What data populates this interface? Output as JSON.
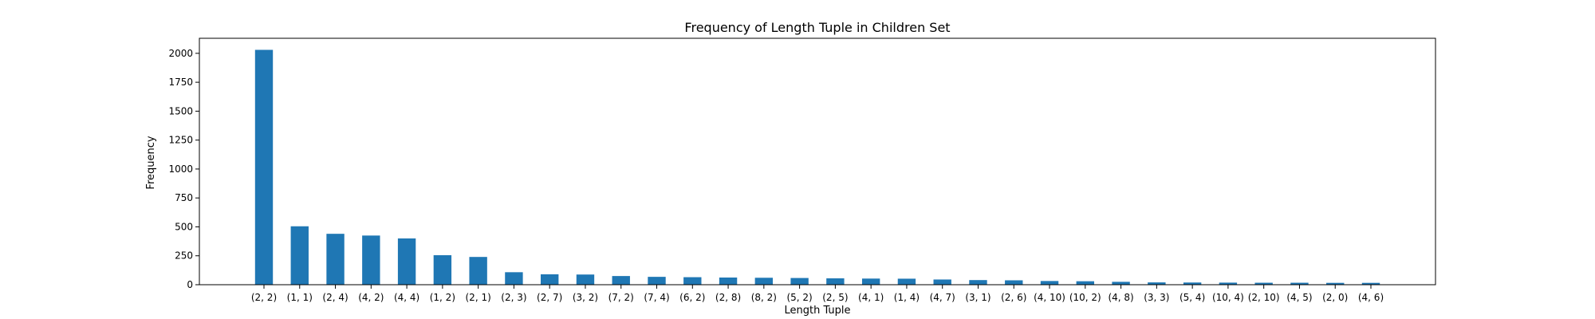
{
  "chart_data": {
    "type": "bar",
    "title": "Frequency of Length Tuple in Children Set",
    "xlabel": "Length Tuple",
    "ylabel": "Frequency",
    "ylim": [
      0,
      2130
    ],
    "yticks": [
      0,
      250,
      500,
      750,
      1000,
      1250,
      1500,
      1750,
      2000
    ],
    "grid": false,
    "bar_color": "#1f77b4",
    "categories": [
      "(2, 2)",
      "(1, 1)",
      "(2, 4)",
      "(4, 2)",
      "(4, 4)",
      "(1, 2)",
      "(2, 1)",
      "(2, 3)",
      "(2, 7)",
      "(3, 2)",
      "(7, 2)",
      "(7, 4)",
      "(6, 2)",
      "(2, 8)",
      "(8, 2)",
      "(5, 2)",
      "(2, 5)",
      "(4, 1)",
      "(1, 4)",
      "(4, 7)",
      "(3, 1)",
      "(2, 6)",
      "(4, 10)",
      "(10, 2)",
      "(4, 8)",
      "(3, 3)",
      "(5, 4)",
      "(10, 4)",
      "(2, 10)",
      "(4, 5)",
      "(2, 0)",
      "(4, 6)"
    ],
    "values": [
      2030,
      505,
      440,
      425,
      400,
      255,
      240,
      108,
      90,
      88,
      75,
      68,
      65,
      62,
      60,
      58,
      55,
      53,
      52,
      45,
      40,
      38,
      32,
      30,
      25,
      20,
      19,
      18,
      17,
      17,
      16,
      16
    ]
  }
}
